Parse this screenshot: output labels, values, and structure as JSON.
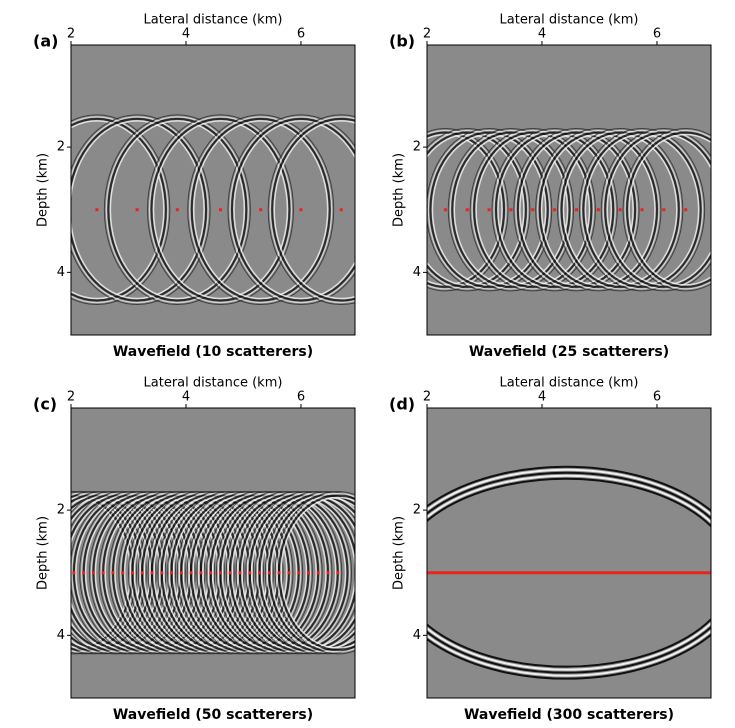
{
  "chart_data": [
    {
      "type": "wavefield",
      "panel": "(a)",
      "title": "Wavefield (10 scatterers)",
      "xlabel": "Lateral distance (km)",
      "ylabel": "Depth (km)",
      "xlim": [
        2,
        6.94
      ],
      "ylim": [
        0.37,
        5.0
      ],
      "y_inverted": true,
      "xticks": [
        2,
        4,
        6
      ],
      "yticks": [
        2,
        4
      ],
      "scatter_x": [
        2.45,
        3.15,
        3.85,
        4.6,
        5.3,
        6.0,
        6.7
      ],
      "scatter_depth": 3.0,
      "color": "#e8241c"
    },
    {
      "type": "wavefield",
      "panel": "(b)",
      "title": "Wavefield (25 scatterers)",
      "xlabel": "Lateral distance (km)",
      "ylabel": "Depth (km)",
      "xlim": [
        2,
        6.94
      ],
      "ylim": [
        0.37,
        5.0
      ],
      "y_inverted": true,
      "xticks": [
        2,
        4,
        6
      ],
      "yticks": [
        2,
        4
      ],
      "scatter_x": [
        2.32,
        2.7,
        3.08,
        3.46,
        3.84,
        4.22,
        4.6,
        4.98,
        5.36,
        5.74,
        6.12,
        6.5
      ],
      "scatter_depth": 3.0,
      "color": "#e8241c"
    },
    {
      "type": "wavefield",
      "panel": "(c)",
      "title": "Wavefield (50 scatterers)",
      "xlabel": "Lateral distance (km)",
      "ylabel": "Depth (km)",
      "xlim": [
        2,
        6.94
      ],
      "ylim": [
        0.37,
        5.0
      ],
      "y_inverted": true,
      "xticks": [
        2,
        4,
        6
      ],
      "yticks": [
        2,
        4
      ],
      "scatter_x": [
        2.05,
        2.22,
        2.39,
        2.56,
        2.73,
        2.9,
        3.07,
        3.24,
        3.41,
        3.58,
        3.75,
        3.92,
        4.09,
        4.26,
        4.43,
        4.6,
        4.77,
        4.94,
        5.11,
        5.28,
        5.45,
        5.62,
        5.79,
        5.96,
        6.13,
        6.3,
        6.47,
        6.64
      ],
      "scatter_depth": 3.0,
      "color": "#e8241c"
    },
    {
      "type": "wavefield",
      "panel": "(d)",
      "title": "Wavefield (300 scatterers)",
      "xlabel": "Lateral distance (km)",
      "ylabel": "Depth (km)",
      "xlim": [
        2,
        6.94
      ],
      "ylim": [
        0.37,
        5.0
      ],
      "y_inverted": true,
      "xticks": [
        2,
        4,
        6
      ],
      "yticks": [
        2,
        4
      ],
      "line_depth": 3.0,
      "color": "#e8241c"
    }
  ]
}
